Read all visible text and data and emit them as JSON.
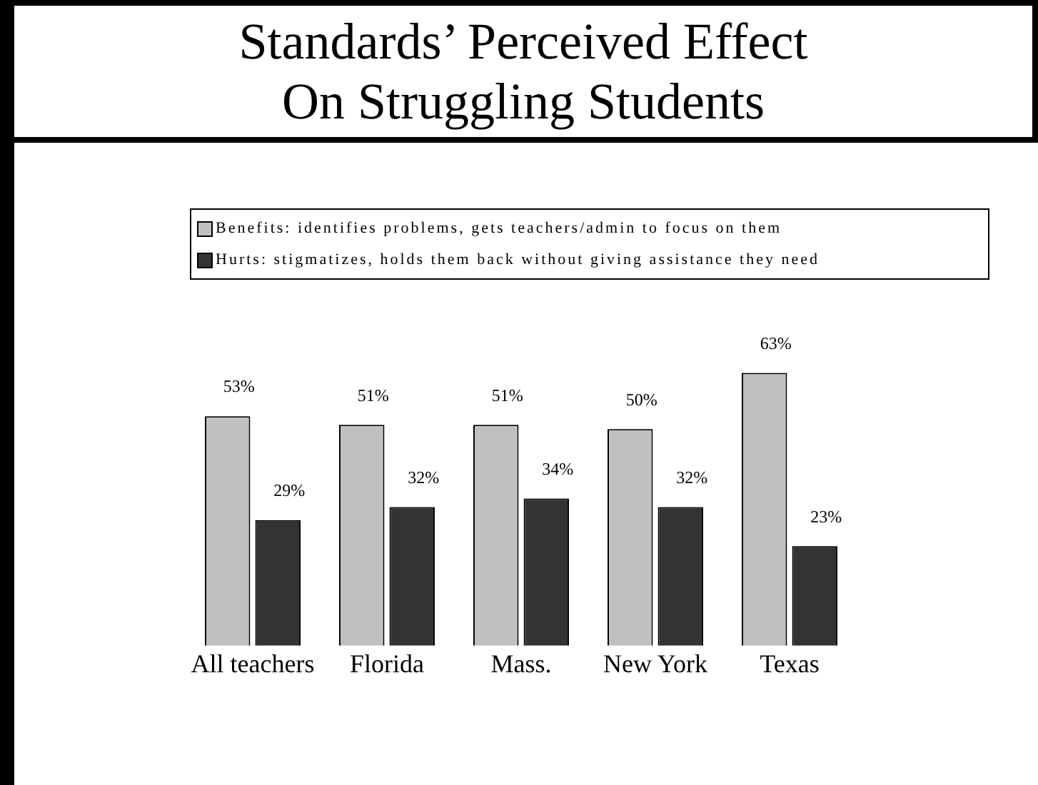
{
  "chart_data": {
    "type": "bar",
    "title": "Standards’ Perceived Effect\nOn Struggling Students",
    "categories": [
      "All teachers",
      "Florida",
      "Mass.",
      "New York",
      "Texas"
    ],
    "series": [
      {
        "name": "Benefits: identifies problems, gets teachers/admin to focus on them",
        "color": "#c0c0c0",
        "values": [
          53,
          51,
          51,
          50,
          63
        ],
        "value_labels": [
          "53%",
          "51%",
          "51%",
          "50%",
          "63%"
        ]
      },
      {
        "name": "Hurts: stigmatizes, holds them back without giving assistance they need",
        "color": "#333333",
        "values": [
          29,
          32,
          34,
          32,
          23
        ],
        "value_labels": [
          "29%",
          "32%",
          "34%",
          "32%",
          "23%"
        ]
      }
    ],
    "legend": "top",
    "grid": false
  }
}
